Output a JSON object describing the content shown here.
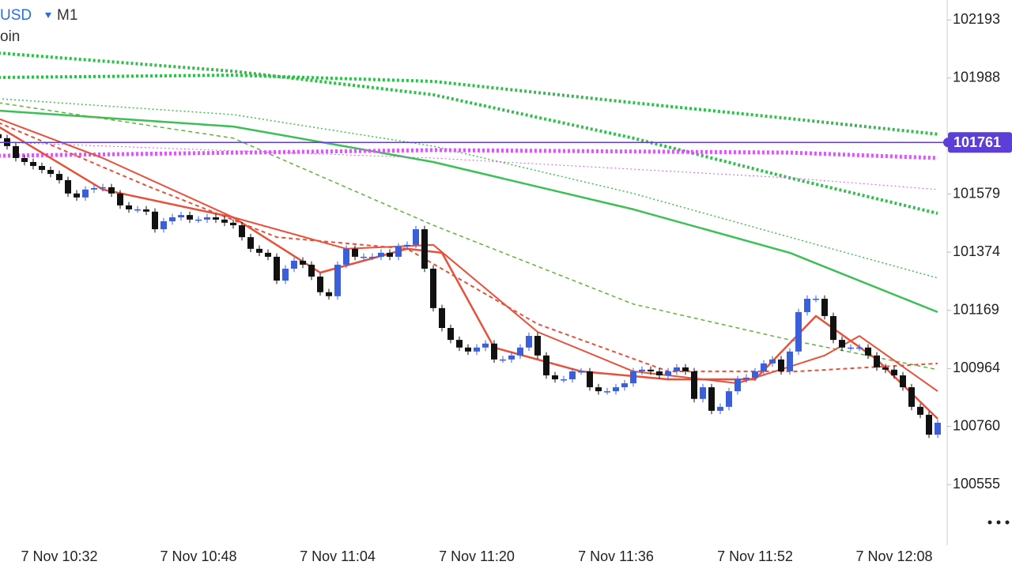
{
  "chart_data": {
    "type": "candlestick",
    "symbol": "USD",
    "timeframe": "M1",
    "subtitle": "oin",
    "ylim": [
      100341,
      102263
    ],
    "yticks": [
      102193,
      101988,
      101579,
      101374,
      101169,
      100964,
      100760,
      100555
    ],
    "current_price": {
      "value": 101761,
      "color": "#5b3fd6"
    },
    "up_color": "#3b5fd9",
    "down_color": "#111111",
    "categories": [
      null,
      null,
      null,
      null,
      null,
      null,
      null,
      "7 Nov 10:32",
      null,
      null,
      null,
      null,
      null,
      null,
      null,
      null,
      null,
      null,
      null,
      null,
      null,
      null,
      null,
      "7 Nov 10:48",
      null,
      null,
      null,
      null,
      null,
      null,
      null,
      null,
      null,
      null,
      null,
      null,
      null,
      null,
      null,
      "7 Nov 11:04",
      null,
      null,
      null,
      null,
      null,
      null,
      null,
      null,
      null,
      null,
      null,
      null,
      null,
      null,
      null,
      "7 Nov 11:20",
      null,
      null,
      null,
      null,
      null,
      null,
      null,
      null,
      null,
      null,
      null,
      null,
      null,
      null,
      null,
      "7 Nov 11:36",
      null,
      null,
      null,
      null,
      null,
      null,
      null,
      null,
      null,
      null,
      null,
      null,
      null,
      null,
      null,
      "7 Nov 11:52",
      null,
      null,
      null,
      null,
      null,
      null,
      null,
      null,
      null,
      null,
      null,
      null,
      null,
      null,
      null,
      "7 Nov 12:08",
      null,
      null,
      null,
      null,
      null
    ],
    "open": [
      101790,
      101776,
      101748,
      101706,
      101692,
      101678,
      101664,
      101650,
      101628,
      101581,
      101567,
      101595,
      101600,
      101603,
      101581,
      101539,
      101525,
      101525,
      101517,
      101455,
      101483,
      101497,
      101505,
      101489,
      101489,
      101497,
      101489,
      101478,
      101469,
      101427,
      101386,
      101372,
      101358,
      101274,
      101316,
      101344,
      101330,
      101288,
      101233,
      101219,
      101330,
      101386,
      101358,
      101358,
      101358,
      101372,
      101358,
      101394,
      101400,
      101455,
      101316,
      101177,
      101107,
      101065,
      101038,
      101024,
      101038,
      101052,
      100996,
      100996,
      101010,
      101038,
      101079,
      101010,
      100940,
      100926,
      100926,
      100954,
      100954,
      100898,
      100884,
      100884,
      100898,
      100912,
      100954,
      100960,
      100954,
      100940,
      100954,
      100968,
      100954,
      100857,
      100898,
      100815,
      100829,
      100884,
      100926,
      100932,
      100954,
      100982,
      100996,
      100954,
      101024,
      101163,
      101210,
      101210,
      101149,
      101065,
      101038,
      101038,
      101038,
      101010,
      100968,
      100960,
      100940,
      100898,
      100829,
      100801,
      100731
    ],
    "close": [
      101776,
      101748,
      101706,
      101692,
      101678,
      101664,
      101650,
      101628,
      101581,
      101567,
      101595,
      101600,
      101603,
      101581,
      101539,
      101525,
      101525,
      101517,
      101455,
      101483,
      101497,
      101505,
      101489,
      101489,
      101497,
      101489,
      101478,
      101469,
      101427,
      101386,
      101372,
      101358,
      101274,
      101316,
      101344,
      101330,
      101288,
      101233,
      101219,
      101330,
      101386,
      101358,
      101358,
      101358,
      101372,
      101358,
      101394,
      101400,
      101455,
      101316,
      101177,
      101107,
      101065,
      101038,
      101024,
      101038,
      101052,
      100996,
      100996,
      101010,
      101038,
      101079,
      101010,
      100940,
      100926,
      100926,
      100954,
      100954,
      100898,
      100884,
      100884,
      100898,
      100912,
      100954,
      100960,
      100954,
      100940,
      100954,
      100968,
      100954,
      100857,
      100898,
      100815,
      100829,
      100884,
      100926,
      100932,
      100954,
      100982,
      100996,
      100954,
      101024,
      101163,
      101210,
      101210,
      101149,
      101065,
      101038,
      101038,
      101038,
      101010,
      100968,
      100960,
      100940,
      100898,
      100829,
      100801,
      100731,
      100773
    ],
    "high": [
      101802,
      101788,
      101760,
      101718,
      101704,
      101690,
      101676,
      101662,
      101640,
      101593,
      101607,
      101612,
      101615,
      101615,
      101593,
      101551,
      101537,
      101537,
      101529,
      101495,
      101509,
      101517,
      101517,
      101501,
      101509,
      101509,
      101501,
      101490,
      101481,
      101439,
      101398,
      101384,
      101370,
      101328,
      101356,
      101356,
      101342,
      101300,
      101245,
      101342,
      101398,
      101398,
      101370,
      101370,
      101384,
      101384,
      101406,
      101412,
      101467,
      101467,
      101328,
      101189,
      101119,
      101077,
      101050,
      101050,
      101064,
      101064,
      101008,
      101022,
      101050,
      101091,
      101091,
      101022,
      100952,
      100938,
      100966,
      100966,
      100966,
      100910,
      100896,
      100910,
      100924,
      100966,
      100972,
      100972,
      100966,
      100966,
      100980,
      100980,
      100966,
      100910,
      100910,
      100841,
      100896,
      100938,
      100944,
      100966,
      100994,
      101008,
      101008,
      101036,
      101175,
      101222,
      101222,
      101222,
      101161,
      101077,
      101050,
      101050,
      101050,
      101022,
      100980,
      100972,
      100952,
      100910,
      100841,
      100813,
      100785
    ],
    "low": [
      101764,
      101736,
      101694,
      101680,
      101666,
      101652,
      101638,
      101616,
      101569,
      101555,
      101555,
      101583,
      101588,
      101569,
      101527,
      101513,
      101513,
      101505,
      101443,
      101443,
      101471,
      101485,
      101477,
      101477,
      101477,
      101477,
      101466,
      101457,
      101415,
      101374,
      101360,
      101346,
      101262,
      101262,
      101304,
      101318,
      101276,
      101221,
      101207,
      101207,
      101318,
      101346,
      101346,
      101346,
      101346,
      101346,
      101346,
      101382,
      101388,
      101304,
      101165,
      101095,
      101053,
      101026,
      101012,
      101012,
      101026,
      100984,
      100984,
      100984,
      100998,
      101026,
      100998,
      100928,
      100914,
      100914,
      100914,
      100942,
      100886,
      100872,
      100872,
      100872,
      100886,
      100900,
      100942,
      100942,
      100928,
      100928,
      100942,
      100942,
      100845,
      100845,
      100803,
      100803,
      100817,
      100872,
      100914,
      100920,
      100942,
      100970,
      100942,
      100942,
      101012,
      101151,
      101198,
      101137,
      101053,
      101026,
      101026,
      101026,
      100998,
      100956,
      100948,
      100928,
      100886,
      100817,
      100789,
      100719,
      100719
    ],
    "series": [
      {
        "color": "#3cbf55",
        "style": "solid",
        "width": 2.5,
        "x": [
          0,
          27,
          50,
          73,
          91,
          108
        ],
        "values": [
          101873,
          101817,
          101692,
          101525,
          101372,
          101163
        ]
      },
      {
        "color": "#3cbf55",
        "style": "dotted",
        "width": 1.5,
        "x": [
          0,
          27,
          50,
          73,
          91,
          108
        ],
        "values": [
          101915,
          101859,
          101748,
          101581,
          101427,
          101283
        ]
      },
      {
        "color": "#5fb33a",
        "style": "dashed",
        "width": 1.5,
        "x": [
          0,
          27,
          50,
          73,
          91,
          108
        ],
        "values": [
          101901,
          101776,
          101469,
          101191,
          101065,
          100960
        ]
      },
      {
        "color": "#2fbf4a",
        "style": "thickdot",
        "width": 4,
        "x": [
          0,
          27,
          50,
          73,
          91,
          108
        ],
        "values": [
          102076,
          102012,
          101929,
          101776,
          101636,
          101511
        ]
      },
      {
        "color": "#2fbf4a",
        "style": "thickdot",
        "width": 4,
        "x": [
          0,
          27,
          50,
          73,
          91,
          108
        ],
        "values": [
          101990,
          101998,
          101976,
          101901,
          101845,
          101790
        ]
      },
      {
        "color": "#d65bf0",
        "style": "thickdot",
        "width": 5,
        "x": [
          0,
          50,
          91,
          108
        ],
        "values": [
          101714,
          101734,
          101725,
          101706
        ]
      },
      {
        "color": "#d65bf0",
        "style": "dotted",
        "width": 1,
        "x": [
          0,
          50,
          91,
          108
        ],
        "values": [
          101762,
          101706,
          101636,
          101595
        ]
      },
      {
        "color": "#e8503a",
        "style": "solid",
        "width": 2,
        "x": [
          0,
          12,
          27,
          40,
          50,
          62,
          73,
          85,
          95,
          99,
          108
        ],
        "values": [
          101845,
          101706,
          101497,
          101386,
          101400,
          101093,
          100954,
          100912,
          101010,
          101079,
          100884
        ]
      },
      {
        "color": "#e8503a",
        "style": "solid",
        "width": 2.5,
        "x": [
          0,
          12,
          27,
          37,
          47,
          51,
          57,
          67,
          77,
          87,
          94,
          101,
          108
        ],
        "values": [
          101817,
          101595,
          101497,
          101302,
          101386,
          101372,
          101038,
          100954,
          100926,
          100926,
          101149,
          100996,
          100787
        ]
      },
      {
        "color": "#e8503a",
        "style": "dashed",
        "width": 2,
        "x": [
          0,
          17,
          32,
          47,
          62,
          77,
          92,
          108
        ],
        "values": [
          101831,
          101609,
          101427,
          101386,
          101121,
          100954,
          100954,
          100982
        ]
      }
    ]
  }
}
